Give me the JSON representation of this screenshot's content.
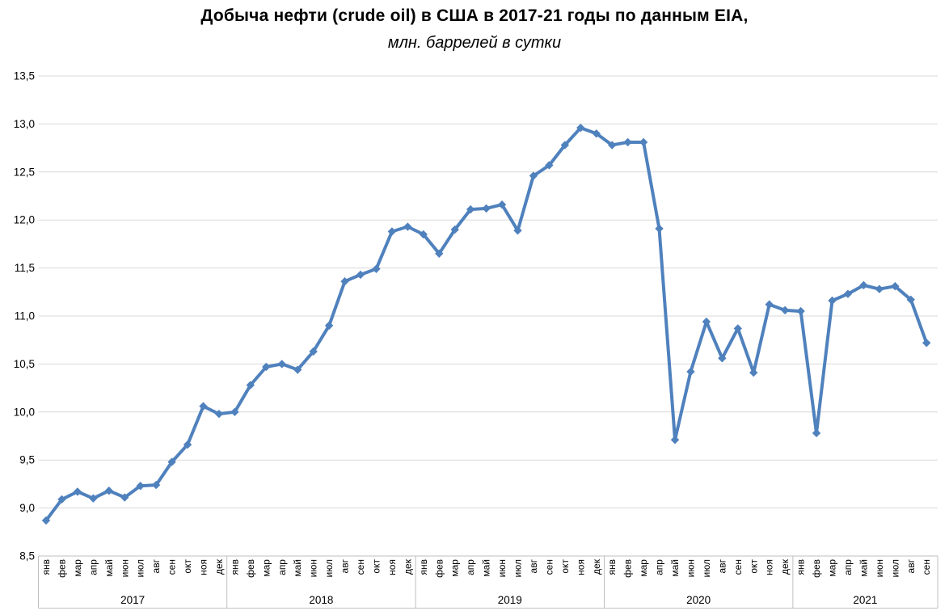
{
  "title": {
    "line1": "Добыча нефти (crude oil) в США в 2017-21 годы по данным EIA,",
    "line2": "млн. баррелей в сутки"
  },
  "chart_data": {
    "type": "line",
    "title": "Добыча нефти (crude oil) в США в 2017-21 годы по данным EIA,",
    "subtitle": "млн. баррелей в сутки",
    "ylabel": "млн. баррелей в сутки",
    "ylim": [
      8.5,
      13.5
    ],
    "ytick_step": 0.5,
    "ytick_labels_top_to_bottom": [
      "13,5",
      "13,0",
      "12,5",
      "12,0",
      "11,5",
      "11,0",
      "10,5",
      "10,0",
      "9,5",
      "9,0",
      "8,5"
    ],
    "grid": "horizontal",
    "legend": false,
    "marker": "diamond",
    "colors": {
      "line": "#4F81BD",
      "marker": "#4F81BD",
      "gridline": "#D9D9D9",
      "axis": "#BFBFBF",
      "text": "#000000",
      "background": "#FFFFFF"
    },
    "month_labels": [
      "янв",
      "фев",
      "мар",
      "апр",
      "май",
      "июн",
      "июл",
      "авг",
      "сен",
      "окт",
      "ноя",
      "дек"
    ],
    "groups": [
      {
        "year": "2017",
        "values": [
          8.87,
          9.09,
          9.17,
          9.1,
          9.18,
          9.11,
          9.23,
          9.24,
          9.48,
          9.66,
          10.06,
          9.98
        ]
      },
      {
        "year": "2018",
        "values": [
          10.0,
          10.28,
          10.47,
          10.5,
          10.44,
          10.63,
          10.9,
          11.36,
          11.43,
          11.49,
          11.88,
          11.93
        ]
      },
      {
        "year": "2019",
        "values": [
          11.85,
          11.65,
          11.9,
          12.11,
          12.12,
          12.16,
          11.89,
          12.46,
          12.57,
          12.78,
          12.96,
          12.9
        ]
      },
      {
        "year": "2020",
        "values": [
          12.78,
          12.81,
          12.81,
          11.91,
          9.71,
          10.42,
          10.94,
          10.56,
          10.87,
          10.41,
          11.12,
          11.06
        ]
      },
      {
        "year": "2021",
        "values": [
          11.05,
          9.78,
          11.16,
          11.23,
          11.32,
          11.28,
          11.31,
          11.17,
          10.72
        ]
      }
    ]
  }
}
